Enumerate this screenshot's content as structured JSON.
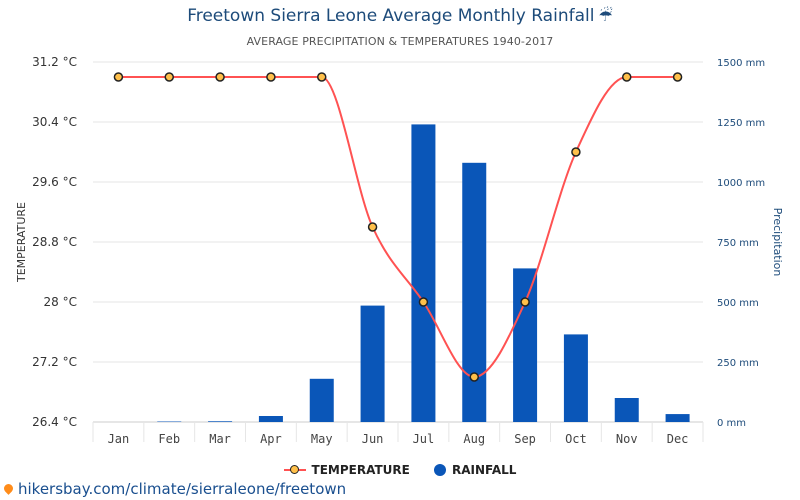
{
  "header": {
    "title": "Freetown Sierra Leone Average Monthly Rainfall",
    "title_icon": "umbrella-rain-icon",
    "subtitle": "AVERAGE PRECIPITATION & TEMPERATURES 1940-2017"
  },
  "legend": {
    "temperature": "TEMPERATURE",
    "rainfall": "RAINFALL"
  },
  "source": {
    "text": "hikersbay.com/climate/sierraleone/freetown",
    "icon": "location-pin-icon"
  },
  "colors": {
    "bar": "#0a56b8",
    "line": "#ff5252",
    "marker_fill": "#ffc04a",
    "marker_stroke": "#222222",
    "left_axis_text": "#333333",
    "right_axis_text": "#1d4b7a"
  },
  "chart_data": {
    "type": "bar",
    "categories": [
      "Jan",
      "Feb",
      "Mar",
      "Apr",
      "May",
      "Jun",
      "Jul",
      "Aug",
      "Sep",
      "Oct",
      "Nov",
      "Dec"
    ],
    "series": [
      {
        "name": "TEMPERATURE",
        "type": "line",
        "axis": "left",
        "values": [
          31.0,
          31.0,
          31.0,
          31.0,
          31.0,
          29.0,
          28.0,
          27.0,
          28.0,
          30.0,
          31.0,
          31.0
        ]
      },
      {
        "name": "RAINFALL",
        "type": "bar",
        "axis": "right",
        "values": [
          0,
          2,
          3,
          25,
          180,
          485,
          1240,
          1080,
          640,
          365,
          100,
          33
        ]
      }
    ],
    "ylabel_left": "TEMPERATURE",
    "ylabel_right": "Precipitation",
    "ylim_left": [
      26.4,
      31.2
    ],
    "yticks_left": [
      "26.4 °C",
      "27.2 °C",
      "28 °C",
      "28.8 °C",
      "29.6 °C",
      "30.4 °C",
      "31.2 °C"
    ],
    "ylim_right": [
      0,
      1500
    ],
    "yticks_right": [
      "0 mm",
      "250 mm",
      "500 mm",
      "750 mm",
      "1000 mm",
      "1250 mm",
      "1500 mm"
    ],
    "grid": true,
    "legend_position": "bottom"
  }
}
